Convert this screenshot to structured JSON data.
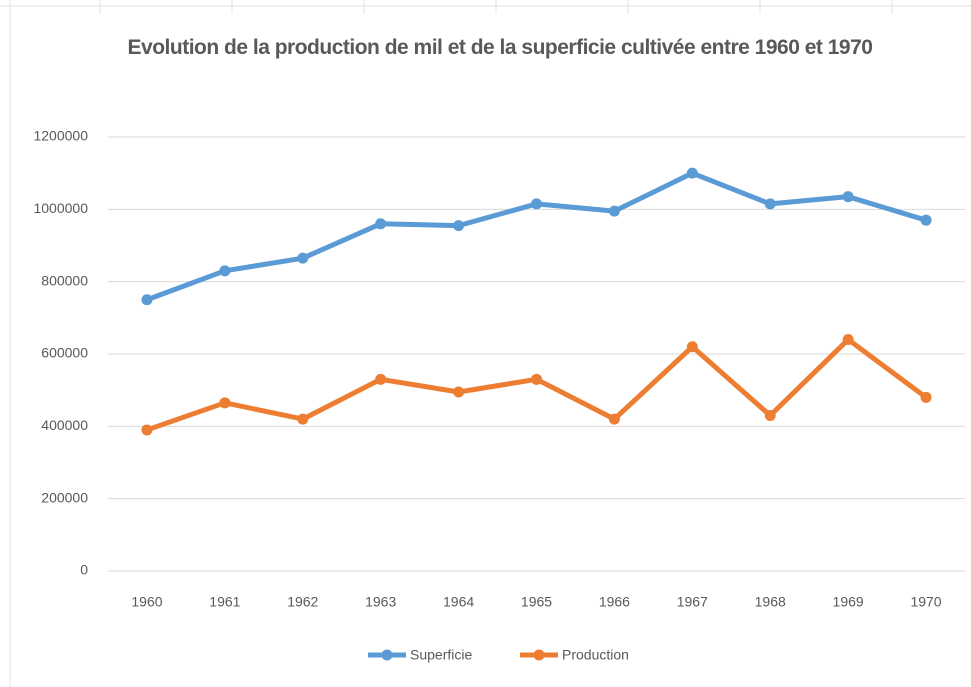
{
  "chart_data": {
    "type": "line",
    "title": "Evolution de la production de mil et de la superficie cultivée entre 1960 et 1970",
    "categories": [
      "1960",
      "1961",
      "1962",
      "1963",
      "1964",
      "1965",
      "1966",
      "1967",
      "1968",
      "1969",
      "1970"
    ],
    "series": [
      {
        "name": "Superficie",
        "color": "#5b9bd5",
        "values": [
          750000,
          830000,
          865000,
          960000,
          955000,
          1015000,
          995000,
          1100000,
          1015000,
          1035000,
          970000
        ]
      },
      {
        "name": "Production",
        "color": "#ed7d31",
        "values": [
          390000,
          465000,
          420000,
          530000,
          495000,
          530000,
          420000,
          620000,
          430000,
          640000,
          480000
        ]
      }
    ],
    "ylim": [
      0,
      1200000
    ],
    "yticks": [
      0,
      200000,
      400000,
      600000,
      800000,
      1000000,
      1200000
    ],
    "grid": true,
    "legend": "bottom"
  }
}
